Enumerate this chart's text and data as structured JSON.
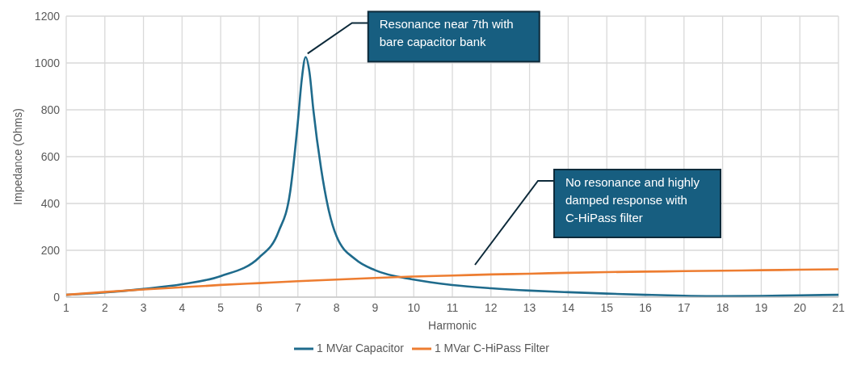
{
  "chart_data": {
    "type": "line",
    "xlabel": "Harmonic",
    "ylabel": "Impedance (Ohms)",
    "xlim": [
      1,
      21
    ],
    "xticks": [
      1,
      2,
      3,
      4,
      5,
      6,
      7,
      8,
      9,
      10,
      11,
      12,
      13,
      14,
      15,
      16,
      17,
      18,
      19,
      20,
      21
    ],
    "ylim": [
      0,
      1200
    ],
    "yticks": [
      0,
      200,
      400,
      600,
      800,
      1000,
      1200
    ],
    "grid": true,
    "legend": "bottom",
    "marker": "none",
    "line_style": "solid",
    "series": [
      {
        "name": "1 MVar Capacitor",
        "color": "#1f6b8c",
        "x": [
          1,
          2,
          3,
          4,
          5,
          6,
          6.5,
          6.8,
          7.0,
          7.1,
          7.2,
          7.3,
          7.4,
          7.6,
          7.8,
          8,
          8.5,
          9,
          10,
          11,
          12,
          13,
          14,
          15,
          16,
          17,
          18,
          19,
          20,
          21
        ],
        "values": [
          10,
          20,
          35,
          55,
          90,
          170,
          280,
          450,
          750,
          930,
          1025,
          960,
          800,
          550,
          370,
          260,
          160,
          115,
          75,
          52,
          38,
          28,
          21,
          15,
          10,
          6,
          4,
          5,
          8,
          10
        ]
      },
      {
        "name": "1 MVar C-HiPass Filter",
        "color": "#ed7d31",
        "x": [
          1,
          2,
          3,
          4,
          5,
          6,
          7,
          8,
          9,
          10,
          11,
          12,
          13,
          14,
          15,
          16,
          17,
          18,
          19,
          20,
          21
        ],
        "values": [
          10,
          22,
          33,
          42,
          52,
          60,
          68,
          75,
          82,
          88,
          92,
          97,
          100,
          104,
          107,
          109,
          111,
          113,
          115,
          117,
          119
        ]
      }
    ],
    "annotations": [
      {
        "text": "Resonance near 7th with bare capacitor bank",
        "x": 7.25,
        "y": 1040
      },
      "No resonance and highly damped response with C-HiPass filter"
    ]
  }
}
